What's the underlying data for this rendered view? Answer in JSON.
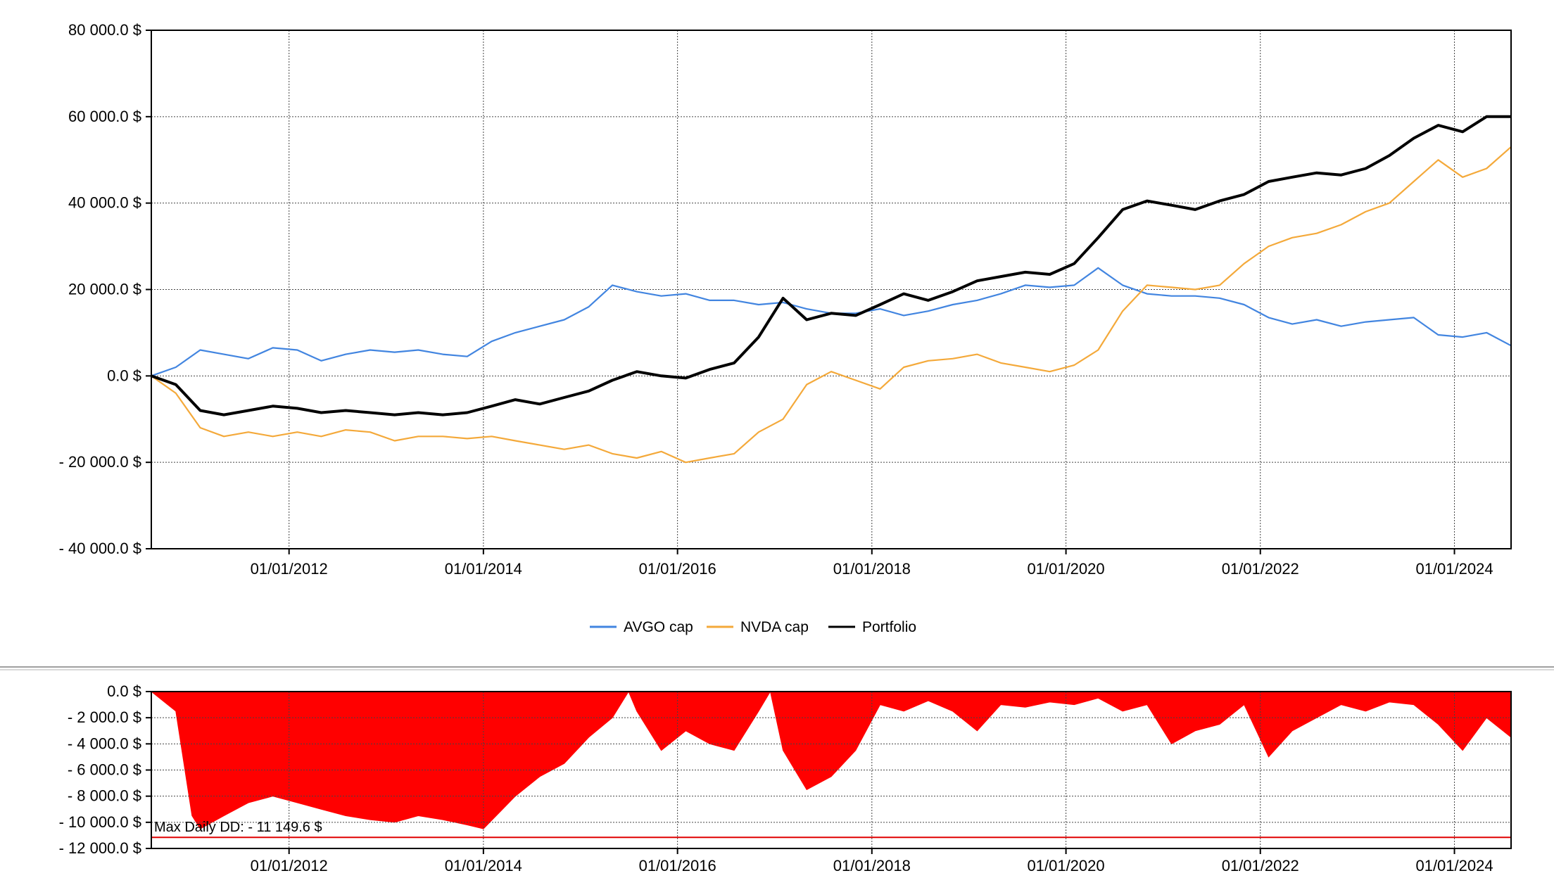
{
  "chart_data": [
    {
      "type": "line",
      "xlim": [
        "2010-08-01",
        "2024-08-01"
      ],
      "ylim": [
        -40000,
        80000
      ],
      "y_ticks": [
        80000,
        60000,
        40000,
        20000,
        0,
        -20000,
        -40000
      ],
      "y_tick_labels": [
        "80 000.0 $",
        "60 000.0 $",
        "40 000.0 $",
        "20 000.0 $",
        "0.0 $",
        "- 20 000.0 $",
        "- 40 000.0 $"
      ],
      "x_ticks": [
        "2012-01-01",
        "2014-01-01",
        "2016-01-01",
        "2018-01-01",
        "2020-01-01",
        "2022-01-01",
        "2024-01-01"
      ],
      "x_tick_labels": [
        "01/01/2012",
        "01/01/2014",
        "01/01/2016",
        "01/01/2018",
        "01/01/2020",
        "01/01/2022",
        "01/01/2024"
      ],
      "grid": true,
      "legend_position": "bottom-center",
      "series": [
        {
          "name": "AVGO cap",
          "color": "#4285e0",
          "x": [
            "2010-08-01",
            "2010-11-01",
            "2011-02-01",
            "2011-05-01",
            "2011-08-01",
            "2011-11-01",
            "2012-02-01",
            "2012-05-01",
            "2012-08-01",
            "2012-11-01",
            "2013-02-01",
            "2013-05-01",
            "2013-08-01",
            "2013-11-01",
            "2014-02-01",
            "2014-05-01",
            "2014-08-01",
            "2014-11-01",
            "2015-02-01",
            "2015-05-01",
            "2015-08-01",
            "2015-11-01",
            "2016-02-01",
            "2016-05-01",
            "2016-08-01",
            "2016-11-01",
            "2017-02-01",
            "2017-05-01",
            "2017-08-01",
            "2017-11-01",
            "2018-02-01",
            "2018-05-01",
            "2018-08-01",
            "2018-11-01",
            "2019-02-01",
            "2019-05-01",
            "2019-08-01",
            "2019-11-01",
            "2020-02-01",
            "2020-05-01",
            "2020-08-01",
            "2020-11-01",
            "2021-02-01",
            "2021-05-01",
            "2021-08-01",
            "2021-11-01",
            "2022-02-01",
            "2022-05-01",
            "2022-08-01",
            "2022-11-01",
            "2023-02-01",
            "2023-05-01",
            "2023-08-01",
            "2023-11-01",
            "2024-02-01",
            "2024-05-01",
            "2024-08-01"
          ],
          "values": [
            0,
            2000,
            6000,
            5000,
            4000,
            6500,
            6000,
            3500,
            5000,
            6000,
            5500,
            6000,
            5000,
            4500,
            8000,
            10000,
            11500,
            13000,
            16000,
            21000,
            19500,
            18500,
            19000,
            17500,
            17500,
            16500,
            17000,
            15500,
            14500,
            14500,
            15500,
            14000,
            15000,
            16500,
            17500,
            19000,
            21000,
            20500,
            21000,
            25000,
            21000,
            19000,
            18500,
            18500,
            18000,
            16500,
            13500,
            12000,
            13000,
            11500,
            12500,
            13000,
            13500,
            9500,
            9000,
            10000,
            7000
          ]
        },
        {
          "name": "NVDA cap",
          "color": "#f4a93a",
          "x": [
            "2010-08-01",
            "2010-11-01",
            "2011-02-01",
            "2011-05-01",
            "2011-08-01",
            "2011-11-01",
            "2012-02-01",
            "2012-05-01",
            "2012-08-01",
            "2012-11-01",
            "2013-02-01",
            "2013-05-01",
            "2013-08-01",
            "2013-11-01",
            "2014-02-01",
            "2014-05-01",
            "2014-08-01",
            "2014-11-01",
            "2015-02-01",
            "2015-05-01",
            "2015-08-01",
            "2015-11-01",
            "2016-02-01",
            "2016-05-01",
            "2016-08-01",
            "2016-11-01",
            "2017-02-01",
            "2017-05-01",
            "2017-08-01",
            "2017-11-01",
            "2018-02-01",
            "2018-05-01",
            "2018-08-01",
            "2018-11-01",
            "2019-02-01",
            "2019-05-01",
            "2019-08-01",
            "2019-11-01",
            "2020-02-01",
            "2020-05-01",
            "2020-08-01",
            "2020-11-01",
            "2021-02-01",
            "2021-05-01",
            "2021-08-01",
            "2021-11-01",
            "2022-02-01",
            "2022-05-01",
            "2022-08-01",
            "2022-11-01",
            "2023-02-01",
            "2023-05-01",
            "2023-08-01",
            "2023-11-01",
            "2024-02-01",
            "2024-05-01",
            "2024-08-01"
          ],
          "values": [
            0,
            -4000,
            -12000,
            -14000,
            -13000,
            -14000,
            -13000,
            -14000,
            -12500,
            -13000,
            -15000,
            -14000,
            -14000,
            -14500,
            -14000,
            -15000,
            -16000,
            -17000,
            -16000,
            -18000,
            -19000,
            -17500,
            -20000,
            -19000,
            -18000,
            -13000,
            -10000,
            -2000,
            1000,
            -1000,
            -3000,
            2000,
            3500,
            4000,
            5000,
            3000,
            2000,
            1000,
            2500,
            6000,
            15000,
            21000,
            20500,
            20000,
            21000,
            26000,
            30000,
            32000,
            33000,
            35000,
            38000,
            40000,
            45000,
            50000,
            46000,
            48000,
            53000
          ]
        },
        {
          "name": "Portfolio",
          "color": "#000000",
          "x": [
            "2010-08-01",
            "2010-11-01",
            "2011-02-01",
            "2011-05-01",
            "2011-08-01",
            "2011-11-01",
            "2012-02-01",
            "2012-05-01",
            "2012-08-01",
            "2012-11-01",
            "2013-02-01",
            "2013-05-01",
            "2013-08-01",
            "2013-11-01",
            "2014-02-01",
            "2014-05-01",
            "2014-08-01",
            "2014-11-01",
            "2015-02-01",
            "2015-05-01",
            "2015-08-01",
            "2015-11-01",
            "2016-02-01",
            "2016-05-01",
            "2016-08-01",
            "2016-11-01",
            "2017-02-01",
            "2017-05-01",
            "2017-08-01",
            "2017-11-01",
            "2018-02-01",
            "2018-05-01",
            "2018-08-01",
            "2018-11-01",
            "2019-02-01",
            "2019-05-01",
            "2019-08-01",
            "2019-11-01",
            "2020-02-01",
            "2020-05-01",
            "2020-08-01",
            "2020-11-01",
            "2021-02-01",
            "2021-05-01",
            "2021-08-01",
            "2021-11-01",
            "2022-02-01",
            "2022-05-01",
            "2022-08-01",
            "2022-11-01",
            "2023-02-01",
            "2023-05-01",
            "2023-08-01",
            "2023-11-01",
            "2024-02-01",
            "2024-05-01",
            "2024-08-01"
          ],
          "values": [
            0,
            -2000,
            -8000,
            -9000,
            -8000,
            -7000,
            -7500,
            -8500,
            -8000,
            -8500,
            -9000,
            -8500,
            -9000,
            -8500,
            -7000,
            -5500,
            -6500,
            -5000,
            -3500,
            -1000,
            1000,
            0,
            -500,
            1500,
            3000,
            9000,
            18000,
            13000,
            14500,
            14000,
            16500,
            19000,
            17500,
            19500,
            22000,
            23000,
            24000,
            23500,
            26000,
            32000,
            38500,
            40500,
            39500,
            38500,
            40500,
            42000,
            45000,
            46000,
            47000,
            46500,
            48000,
            51000,
            55000,
            58000,
            56500,
            60000,
            60000
          ]
        }
      ]
    },
    {
      "type": "area",
      "xlim": [
        "2010-08-01",
        "2024-08-01"
      ],
      "ylim": [
        -12000,
        0
      ],
      "y_ticks": [
        0,
        -2000,
        -4000,
        -6000,
        -8000,
        -10000,
        -12000
      ],
      "y_tick_labels": [
        "0.0 $",
        "- 2 000.0 $",
        "- 4 000.0 $",
        "- 6 000.0 $",
        "- 8 000.0 $",
        "- 10 000.0 $",
        "- 12 000.0 $"
      ],
      "x_ticks": [
        "2012-01-01",
        "2014-01-01",
        "2016-01-01",
        "2018-01-01",
        "2020-01-01",
        "2022-01-01",
        "2024-01-01"
      ],
      "x_tick_labels": [
        "01/01/2012",
        "01/01/2014",
        "01/01/2016",
        "01/01/2018",
        "01/01/2020",
        "01/01/2022",
        "01/01/2024"
      ],
      "grid": true,
      "reference_line": {
        "value": -11149.6,
        "color": "#e00000"
      },
      "annotation": "Max Daily DD: - 11 149.6 $",
      "series": [
        {
          "color": "#ff0000",
          "x": [
            "2010-08-01",
            "2010-11-01",
            "2011-01-01",
            "2011-02-01",
            "2011-05-01",
            "2011-08-01",
            "2011-11-01",
            "2012-02-01",
            "2012-05-01",
            "2012-08-01",
            "2012-11-01",
            "2013-02-01",
            "2013-05-01",
            "2013-08-01",
            "2013-11-01",
            "2014-01-01",
            "2014-05-01",
            "2014-08-01",
            "2014-11-01",
            "2015-02-01",
            "2015-05-01",
            "2015-07-01",
            "2015-08-01",
            "2015-11-01",
            "2016-02-01",
            "2016-05-01",
            "2016-08-01",
            "2016-11-01",
            "2016-12-15",
            "2017-02-01",
            "2017-05-01",
            "2017-08-01",
            "2017-11-01",
            "2018-02-01",
            "2018-05-01",
            "2018-08-01",
            "2018-11-01",
            "2019-02-01",
            "2019-05-01",
            "2019-08-01",
            "2019-11-01",
            "2020-02-01",
            "2020-05-01",
            "2020-08-01",
            "2020-11-01",
            "2021-02-01",
            "2021-05-01",
            "2021-08-01",
            "2021-11-01",
            "2022-02-01",
            "2022-05-01",
            "2022-08-01",
            "2022-11-01",
            "2023-02-01",
            "2023-05-01",
            "2023-08-01",
            "2023-11-01",
            "2024-02-01",
            "2024-05-01",
            "2024-08-01"
          ],
          "values": [
            0,
            -1500,
            -9500,
            -10500,
            -9500,
            -8500,
            -8000,
            -8500,
            -9000,
            -9500,
            -9800,
            -10000,
            -9500,
            -9800,
            -10200,
            -10500,
            -8000,
            -6500,
            -5500,
            -3500,
            -2000,
            0,
            -1500,
            -4500,
            -3000,
            -4000,
            -4500,
            -1500,
            0,
            -4500,
            -7500,
            -6500,
            -4500,
            -1000,
            -1500,
            -700,
            -1500,
            -3000,
            -1000,
            -1200,
            -800,
            -1000,
            -500,
            -1500,
            -1000,
            -4000,
            -3000,
            -2500,
            -1000,
            -5000,
            -3000,
            -2000,
            -1000,
            -1500,
            -800,
            -1000,
            -2500,
            -4500,
            -2000,
            -3500
          ]
        }
      ]
    }
  ]
}
